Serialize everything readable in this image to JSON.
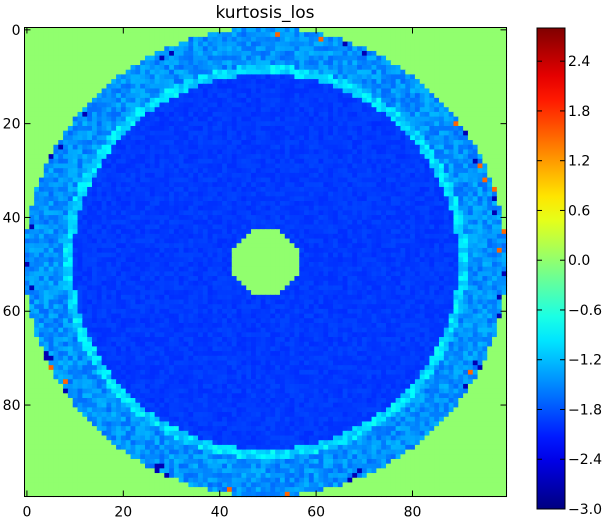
{
  "chart_data": {
    "type": "heatmap",
    "title": "kurtosis_los",
    "xlabel": "",
    "ylabel": "",
    "grid_size": [
      100,
      100
    ],
    "x_range": [
      0,
      99
    ],
    "y_range": [
      0,
      99
    ],
    "y_axis_direction": "down",
    "x_ticks": [
      0,
      20,
      40,
      60,
      80
    ],
    "y_ticks": [
      0,
      20,
      40,
      60,
      80
    ],
    "colormap": "jet",
    "color_range": [
      -3.0,
      2.8
    ],
    "colorbar_ticks": [
      2.4,
      1.8,
      1.2,
      0.6,
      0.0,
      -0.6,
      -1.2,
      -1.8,
      -2.4,
      -3.0
    ],
    "colorbar_tick_labels": [
      "2.4",
      "1.8",
      "1.2",
      "0.6",
      "0.0",
      "−0.6",
      "−1.2",
      "−1.8",
      "−2.4",
      "−3.0"
    ],
    "field_structure": {
      "center": [
        49.5,
        49.5
      ],
      "background_value": 0.0,
      "regions": [
        {
          "name": "central spot",
          "radius_max": 7,
          "value": 0.0
        },
        {
          "name": "inner disk",
          "radius_min": 7,
          "radius_max": 40,
          "value": -1.95
        },
        {
          "name": "bright boundary ring",
          "radius_min": 40,
          "radius_max": 42,
          "value": -1.0
        },
        {
          "name": "outer ring",
          "radius_min": 42,
          "radius_max": 50,
          "value": -1.45
        },
        {
          "name": "outside",
          "radius_min": 50,
          "value": 0.0
        }
      ]
    }
  }
}
